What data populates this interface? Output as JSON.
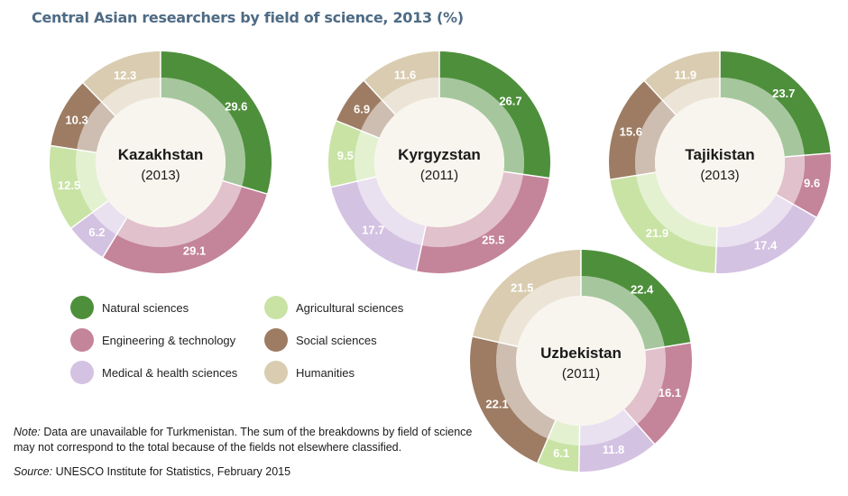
{
  "title": "Central Asian researchers by field of science, 2013 (%)",
  "colors": {
    "Natural sciences": "#4e8f3c",
    "Engineering & technology": "#c4849a",
    "Medical & health sciences": "#d4c2e2",
    "Agricultural sciences": "#c8e3a4",
    "Social sciences": "#9d7c63",
    "Humanities": "#d9ccb0"
  },
  "legend": [
    {
      "label": "Natural sciences",
      "key": "Natural sciences"
    },
    {
      "label": "Agricultural sciences",
      "key": "Agricultural sciences"
    },
    {
      "label": "Engineering & technology",
      "key": "Engineering & technology"
    },
    {
      "label": "Social sciences",
      "key": "Social sciences"
    },
    {
      "label": "Medical & health sciences",
      "key": "Medical & health sciences"
    },
    {
      "label": "Humanities",
      "key": "Humanities"
    }
  ],
  "note": {
    "prefix": "Note:",
    "text": " Data are unavailable for Turkmenistan. The sum of the breakdowns by field of science may not correspond to the total because of the fields not elsewhere classified."
  },
  "source": {
    "prefix": "Source:",
    "text": " UNESCO Institute for Statistics, February 2015"
  },
  "chart_data": [
    {
      "type": "pie",
      "title": "Kazakhstan",
      "subtitle": "(2013)",
      "categories": [
        "Natural sciences",
        "Engineering & technology",
        "Medical & health sciences",
        "Agricultural sciences",
        "Social sciences",
        "Humanities"
      ],
      "values": [
        29.6,
        29.1,
        6.2,
        12.5,
        10.3,
        12.3
      ]
    },
    {
      "type": "pie",
      "title": "Kyrgyzstan",
      "subtitle": "(2011)",
      "categories": [
        "Natural sciences",
        "Engineering & technology",
        "Medical & health sciences",
        "Agricultural sciences",
        "Social sciences",
        "Humanities"
      ],
      "values": [
        26.7,
        25.5,
        17.7,
        9.5,
        6.9,
        11.6
      ]
    },
    {
      "type": "pie",
      "title": "Tajikistan",
      "subtitle": "(2013)",
      "categories": [
        "Natural sciences",
        "Engineering & technology",
        "Medical & health sciences",
        "Agricultural sciences",
        "Social sciences",
        "Humanities"
      ],
      "values": [
        23.7,
        9.6,
        17.4,
        21.9,
        15.6,
        11.9
      ]
    },
    {
      "type": "pie",
      "title": "Uzbekistan",
      "subtitle": "(2011)",
      "categories": [
        "Natural sciences",
        "Engineering & technology",
        "Medical & health sciences",
        "Agricultural sciences",
        "Social sciences",
        "Humanities"
      ],
      "values": [
        22.4,
        16.1,
        11.8,
        6.1,
        22.1,
        21.5
      ]
    }
  ]
}
